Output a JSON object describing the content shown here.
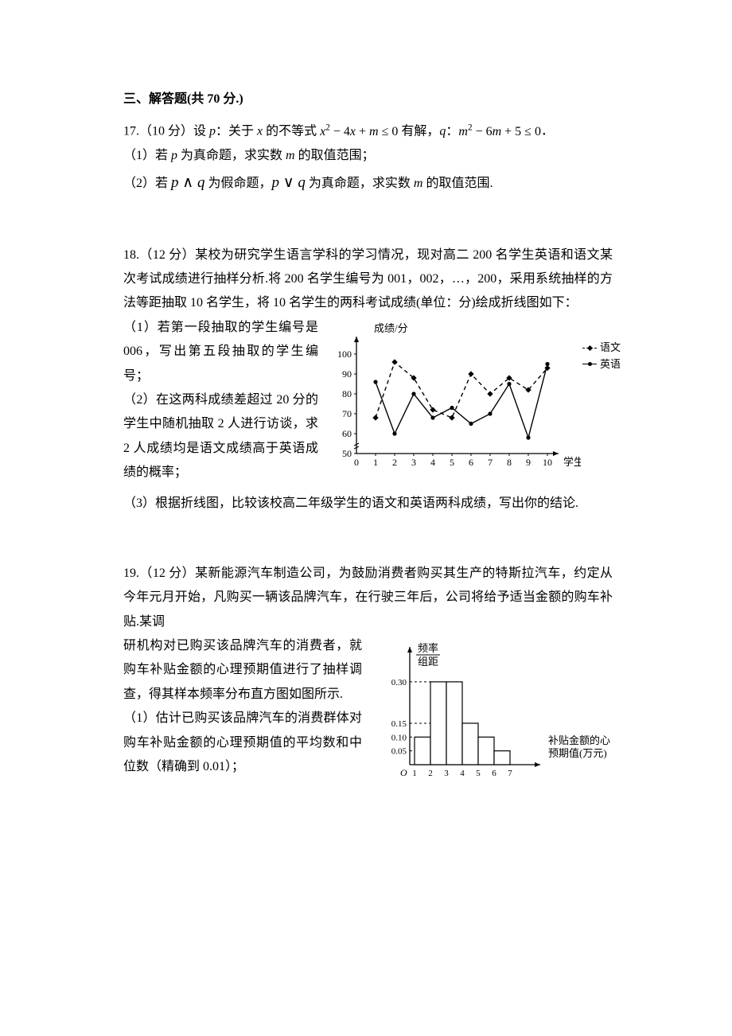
{
  "section": {
    "heading": "三、解答题(共 70 分.)"
  },
  "q17": {
    "lead_a": "17.（10 分）设 ",
    "p": "p",
    "lead_b": "：关于 ",
    "x": "x",
    "lead_c": " 的不等式 ",
    "ineq1_html": "x² − 4x + m ≤ 0",
    "lead_d": " 有解，",
    "q": "q",
    "lead_e": "：",
    "ineq2_html": "m² − 6m + 5 ≤ 0",
    "lead_f": "．",
    "sub1_a": "（1）若 ",
    "sub1_b": " 为真命题，求实数 ",
    "m": "m",
    "sub1_c": " 的取值范围；",
    "sub2_a": "（2）若 ",
    "sub2_pq1": "p ∧ q",
    "sub2_b": " 为假命题，",
    "sub2_pq2": "p ∨ q",
    "sub2_c": " 为真命题，求实数 ",
    "sub2_d": " 的取值范围."
  },
  "q18": {
    "lead": "18.（12 分）某校为研究学生语言学科的学习情况，现对高二 200 名学生英语和语文某次考试成绩进行抽样分析.将 200 名学生编号为 001，002，…，200，采用系统抽样的方法等距抽取 10 名学生，将 10 名学生的两科考试成绩(单位：分)绘成折线图如下：",
    "sub1": "（1）若第一段抽取的学生编号是 006，写出第五段抽取的学生编号；",
    "sub2": "（2）在这两科成绩差超过 20 分的学生中随机抽取 2 人进行访谈，求 2 人成绩均是语文成绩高于英语成绩的概率；",
    "sub3": "（3）根据折线图，比较该校高二年级学生的语文和英语两科成绩，写出你的结论.",
    "chart": {
      "type": "line",
      "y_label": "成绩/分",
      "x_label": "学生",
      "y_ticks": [
        50,
        60,
        70,
        80,
        90,
        100
      ],
      "x_ticks": [
        0,
        1,
        2,
        3,
        4,
        5,
        6,
        7,
        8,
        9,
        10
      ],
      "series": [
        {
          "name": "语文",
          "style": "dashed",
          "marker": "diamond",
          "color": "#000000",
          "values": [
            68,
            96,
            88,
            72,
            68,
            90,
            80,
            88,
            82,
            93
          ]
        },
        {
          "name": "英语",
          "style": "solid",
          "marker": "circle",
          "color": "#000000",
          "values": [
            86,
            60,
            80,
            68,
            73,
            65,
            70,
            85,
            58,
            95
          ]
        }
      ],
      "y_min": 50,
      "y_max": 100,
      "plot_bg": "#ffffff",
      "axis_color": "#000000",
      "tick_fontsize": 12
    },
    "legend": {
      "yuwen": "语文",
      "yingyu": "英语"
    }
  },
  "q19": {
    "lead": "19.（12 分）某新能源汽车制造公司，为鼓励消费者购买其生产的特斯拉汽车，约定从今年元月开始，凡购买一辆该品牌汽车，在行驶三年后，公司将给予适当金额的购车补贴.某调",
    "left1": "研机构对已购买该品牌汽车的消费者，就购车补贴金额的心理预期值进行了抽样调查，得其样本频率分布直方图如图所示.",
    "left2": "（1）估计已购买该品牌汽车的消费群体对购车补贴金额的心理预期值的平均数和中位数（精确到 0.01）；",
    "hist": {
      "type": "histogram",
      "y_label_1": "频率",
      "y_label_2": "组距",
      "x_label": "补贴金额的心理\n预期值(万元)",
      "x_label_line1": "补贴金额的心理",
      "x_label_line2": "预期值(万元)",
      "x_ticks": [
        1,
        2,
        3,
        4,
        5,
        6,
        7
      ],
      "y_ticks": [
        0.05,
        0.1,
        0.15,
        0.3
      ],
      "y_tick_labels": [
        "0.05",
        "0.10",
        "0.15",
        "0.30"
      ],
      "bars": [
        {
          "x0": 1,
          "x1": 2,
          "h": 0.1
        },
        {
          "x0": 2,
          "x1": 3,
          "h": 0.3
        },
        {
          "x0": 3,
          "x1": 4,
          "h": 0.3
        },
        {
          "x0": 4,
          "x1": 5,
          "h": 0.15
        },
        {
          "x0": 5,
          "x1": 6,
          "h": 0.1
        },
        {
          "x0": 6,
          "x1": 7,
          "h": 0.05
        }
      ],
      "bar_fill": "#ffffff",
      "bar_stroke": "#000000",
      "axis_color": "#000000",
      "dash_color": "#000000",
      "tick_fontsize": 11,
      "origin_label": "O"
    }
  }
}
